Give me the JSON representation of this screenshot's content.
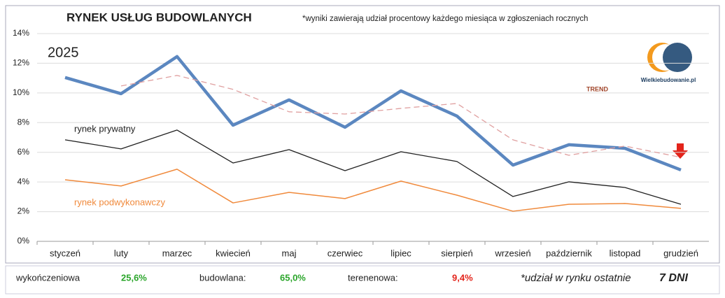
{
  "chart_data": {
    "type": "line",
    "title": "RYNEK USŁUG BUDOWLANYCH",
    "subtitle": "*wyniki zawierają udział procentowy każdego miesiąca w  zgłoszeniach rocznych",
    "year_label": "2025",
    "logo": "Wielkiebudowanie.pl",
    "categories": [
      "styczeń",
      "luty",
      "marzec",
      "kwiecień",
      "maj",
      "czerwiec",
      "lipiec",
      "sierpień",
      "wrzesień",
      "październik",
      "listopad",
      "grudzień"
    ],
    "series": [
      {
        "color": "#5b87c0",
        "width": 4.5,
        "values": [
          11.04,
          9.95,
          12.45,
          7.83,
          9.53,
          7.69,
          10.14,
          8.44,
          5.14,
          6.51,
          6.27,
          4.81
        ]
      },
      {
        "name": "TREND",
        "color": "#e0a0a0",
        "dashed": true,
        "width": 1.3,
        "values": [
          null,
          10.47,
          11.18,
          10.24,
          8.73,
          8.58,
          8.96,
          9.29,
          6.84,
          5.8,
          6.42,
          5.66
        ]
      },
      {
        "name": "rynek prywatny",
        "color": "#222222",
        "width": 1.3,
        "values": [
          6.84,
          6.23,
          7.5,
          5.28,
          6.18,
          4.76,
          6.04,
          5.38,
          3.02,
          4.01,
          3.63,
          2.5
        ]
      },
      {
        "name": "rynek podwykonawczy",
        "color": "#f08a3c",
        "width": 1.5,
        "values": [
          4.15,
          3.73,
          4.86,
          2.59,
          3.3,
          2.88,
          4.06,
          3.11,
          2.03,
          2.5,
          2.55,
          2.22
        ]
      }
    ],
    "ylim": [
      0,
      14
    ],
    "yticks": [
      {
        "value": 0,
        "label": "0%"
      },
      {
        "value": 2,
        "label": "2%"
      },
      {
        "value": 4,
        "label": "4%"
      },
      {
        "value": 6,
        "label": "6%"
      },
      {
        "value": 8,
        "label": "8%"
      },
      {
        "value": 10,
        "label": "10%"
      },
      {
        "value": 12,
        "label": "12%"
      },
      {
        "value": 14,
        "label": "14%"
      }
    ],
    "grid": true
  },
  "footer": {
    "items": [
      {
        "label": "wykończeniowa",
        "value": "25,6%"
      },
      {
        "label": "budowlana:",
        "value": "65,0%"
      },
      {
        "label": "terenenowa:",
        "value": "9,4%"
      }
    ],
    "note": "*udział w rynku ostatnie",
    "note_strong": "7 DNI"
  }
}
